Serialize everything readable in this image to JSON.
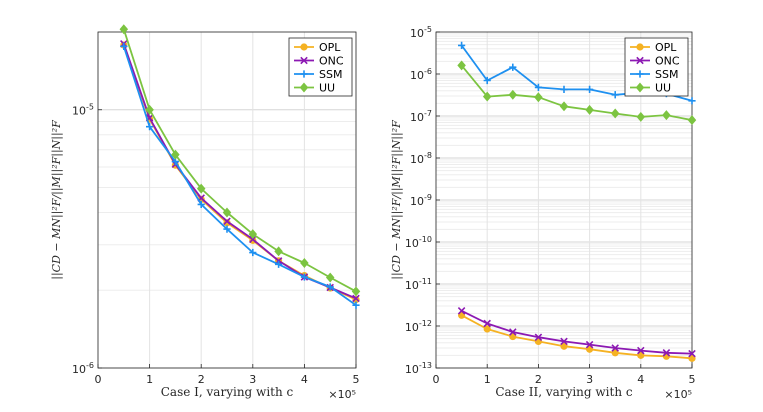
{
  "colors": {
    "OPL": "#f5b223",
    "ONC": "#8c19b3",
    "SSM": "#1e90f0",
    "UU": "#7cc441",
    "grid": "#e3e3e3",
    "axis": "#262626"
  },
  "chart_data": [
    {
      "type": "line",
      "yscale": "log",
      "xlabel": "Case I, varying with c",
      "ylabel": "||CD − MN||²F/||M||²F||N||²F",
      "x_multiplier": "×10⁵",
      "xlim": [
        0,
        5
      ],
      "ylim": [
        1e-06,
        2e-05
      ],
      "xticks": [
        "0",
        "1",
        "2",
        "3",
        "4",
        "5"
      ],
      "yticks": [
        {
          "base": "10",
          "exp": "-6"
        },
        {
          "base": "10",
          "exp": "-5"
        }
      ],
      "legend_position": "top-right",
      "x": [
        0.5,
        1,
        1.5,
        2,
        2.5,
        3,
        3.5,
        4,
        4.5,
        5
      ],
      "series": [
        {
          "name": "OPL",
          "marker": "circle",
          "values": [
            1.78e-05,
            9.2e-06,
            6.1e-06,
            4.5e-06,
            3.65e-06,
            3.12e-06,
            2.6e-06,
            2.28e-06,
            2.04e-06,
            1.84e-06
          ]
        },
        {
          "name": "ONC",
          "marker": "x",
          "values": [
            1.8e-05,
            9.3e-06,
            6.15e-06,
            4.55e-06,
            3.7e-06,
            3.15e-06,
            2.6e-06,
            2.25e-06,
            2.05e-06,
            1.86e-06
          ]
        },
        {
          "name": "SSM",
          "marker": "plus",
          "values": [
            1.76e-05,
            8.6e-06,
            6.3e-06,
            4.3e-06,
            3.45e-06,
            2.8e-06,
            2.52e-06,
            2.25e-06,
            2.06e-06,
            1.75e-06
          ]
        },
        {
          "name": "UU",
          "marker": "diamond",
          "values": [
            2.05e-05,
            1e-05,
            6.7e-06,
            4.95e-06,
            4e-06,
            3.3e-06,
            2.83e-06,
            2.55e-06,
            2.24e-06,
            1.98e-06
          ]
        }
      ]
    },
    {
      "type": "line",
      "yscale": "log",
      "xlabel": "Case II, varying with c",
      "ylabel": "||CD − MN||²F/||M||²F||N||²F",
      "x_multiplier": "×10⁵",
      "xlim": [
        0,
        5
      ],
      "ylim": [
        1e-13,
        1e-05
      ],
      "xticks": [
        "0",
        "1",
        "2",
        "3",
        "4",
        "5"
      ],
      "yticks": [
        {
          "base": "10",
          "exp": "-13"
        },
        {
          "base": "10",
          "exp": "-12"
        },
        {
          "base": "10",
          "exp": "-11"
        },
        {
          "base": "10",
          "exp": "-10"
        },
        {
          "base": "10",
          "exp": "-9"
        },
        {
          "base": "10",
          "exp": "-8"
        },
        {
          "base": "10",
          "exp": "-7"
        },
        {
          "base": "10",
          "exp": "-6"
        },
        {
          "base": "10",
          "exp": "-5"
        }
      ],
      "legend_position": "top-right",
      "x": [
        0.5,
        1,
        1.5,
        2,
        2.5,
        3,
        3.5,
        4,
        4.5,
        5
      ],
      "series": [
        {
          "name": "OPL",
          "marker": "circle",
          "values": [
            1.8e-12,
            8.5e-13,
            5.6e-13,
            4.3e-13,
            3.3e-13,
            2.8e-13,
            2.3e-13,
            2e-13,
            1.9e-13,
            1.7e-13
          ]
        },
        {
          "name": "ONC",
          "marker": "x",
          "values": [
            2.3e-12,
            1.15e-12,
            7.2e-13,
            5.4e-13,
            4.3e-13,
            3.6e-13,
            3e-13,
            2.6e-13,
            2.3e-13,
            2.2e-13
          ]
        },
        {
          "name": "SSM",
          "marker": "plus",
          "values": [
            4.8e-06,
            7e-07,
            1.45e-06,
            4.8e-07,
            4.3e-07,
            4.3e-07,
            3.2e-07,
            3.6e-07,
            3.4e-07,
            2.3e-07
          ]
        },
        {
          "name": "UU",
          "marker": "diamond",
          "values": [
            1.6e-06,
            2.9e-07,
            3.2e-07,
            2.8e-07,
            1.7e-07,
            1.4e-07,
            1.15e-07,
            9.5e-08,
            1.05e-07,
            8e-08
          ]
        }
      ]
    }
  ]
}
